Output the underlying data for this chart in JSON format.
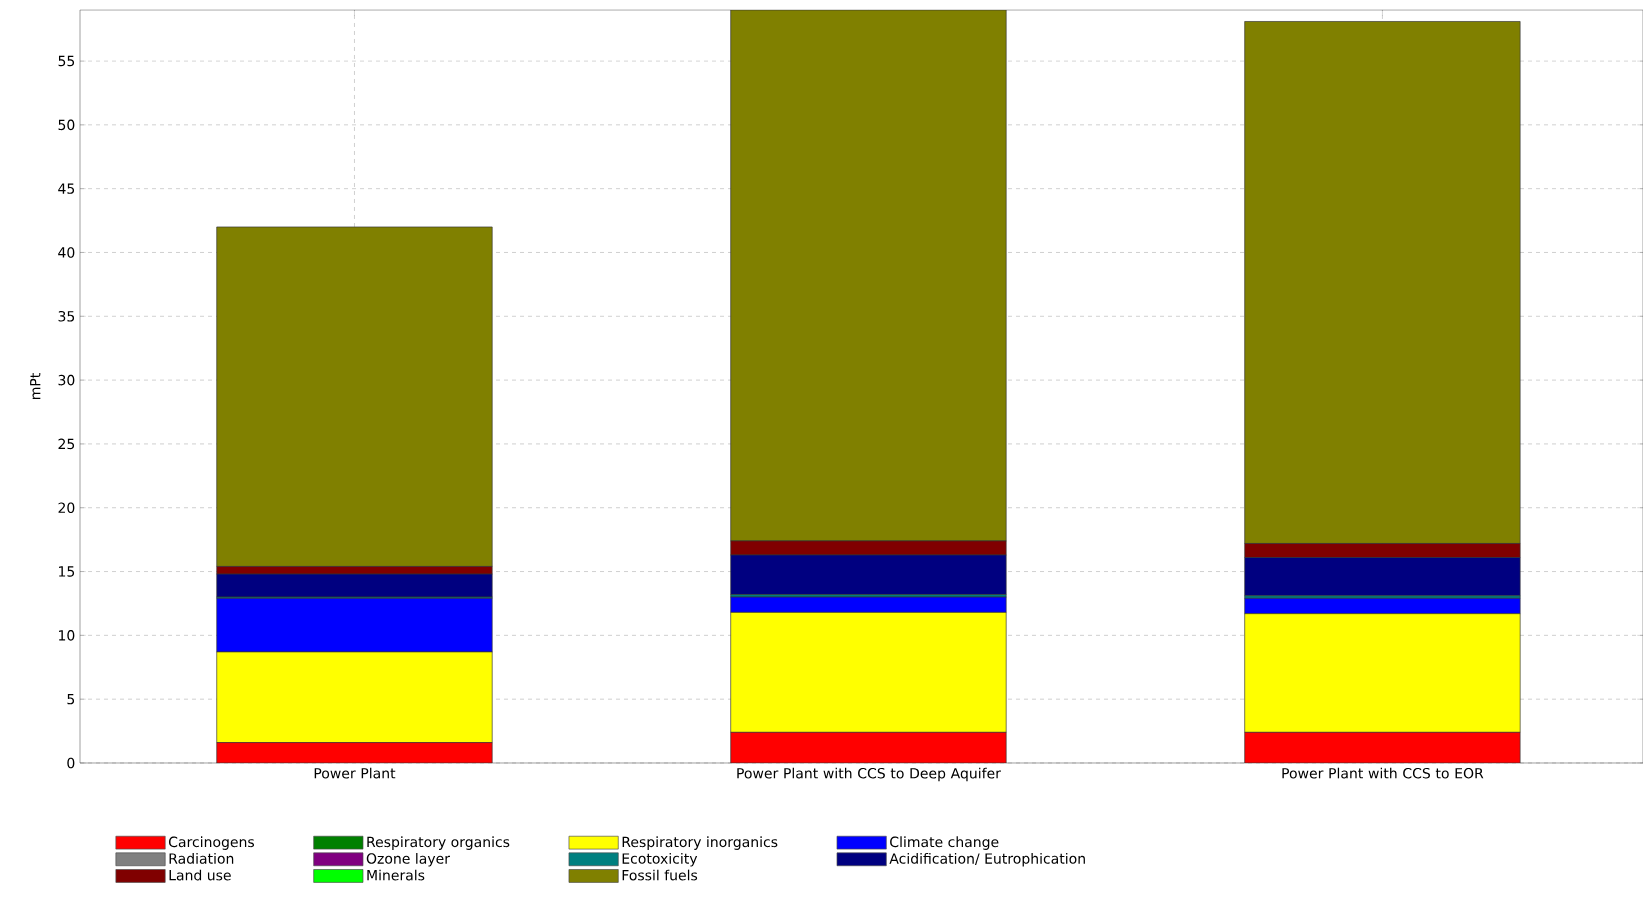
{
  "chart_data": {
    "type": "bar",
    "stacked": true,
    "ylabel": "mPt",
    "categories": [
      "Power Plant",
      "Power Plant with CCS to Deep Aquifer",
      "Power Plant with CCS to EOR"
    ],
    "ylim": [
      0,
      59
    ],
    "yticks": [
      0,
      5,
      10,
      15,
      20,
      25,
      30,
      35,
      40,
      45,
      50,
      55
    ],
    "grid": true,
    "legend": "bottom",
    "series": [
      {
        "name": "Carcinogens",
        "color": "#ff0000",
        "values": [
          1.6,
          2.4,
          2.4
        ]
      },
      {
        "name": "Respiratory organics",
        "color": "#008000",
        "values": [
          0,
          0,
          0
        ]
      },
      {
        "name": "Respiratory inorganics",
        "color": "#ffff00",
        "values": [
          7.1,
          9.4,
          9.3
        ]
      },
      {
        "name": "Climate change",
        "color": "#0000ff",
        "values": [
          4.2,
          1.2,
          1.2
        ]
      },
      {
        "name": "Radiation",
        "color": "#808080",
        "values": [
          0,
          0,
          0
        ]
      },
      {
        "name": "Ozone layer",
        "color": "#800080",
        "values": [
          0,
          0,
          0
        ]
      },
      {
        "name": "Ecotoxicity",
        "color": "#008080",
        "values": [
          0.1,
          0.2,
          0.2
        ]
      },
      {
        "name": "Acidification/ Eutrophication",
        "color": "#000080",
        "values": [
          1.8,
          3.1,
          3.0
        ]
      },
      {
        "name": "Land use",
        "color": "#800000",
        "values": [
          0.6,
          1.1,
          1.1
        ]
      },
      {
        "name": "Minerals",
        "color": "#00ff00",
        "values": [
          0,
          0,
          0
        ]
      },
      {
        "name": "Fossil fuels",
        "color": "#808000",
        "values": [
          26.6,
          41.6,
          40.9
        ]
      }
    ]
  }
}
